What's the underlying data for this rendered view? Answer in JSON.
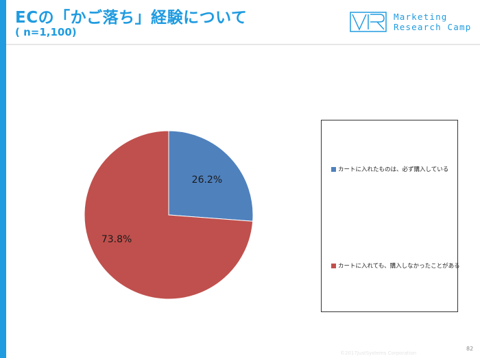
{
  "header": {
    "title": "ECの「かご落ち」経験について",
    "subtitle": "( n=1,100)"
  },
  "logo": {
    "line1": "Marketing",
    "line2": "Research Camp"
  },
  "footer": {
    "copyright": "©2017JustSystems Corporation",
    "page_number": "82"
  },
  "colors": {
    "accent": "#1f9be0",
    "series_blue": "#4f81bd",
    "series_red": "#c0504d"
  },
  "chart_data": {
    "type": "pie",
    "categories": [
      "カートに入れたものは、必ず購入している",
      "カートに入れても、購入しなかったことがある"
    ],
    "values": [
      26.2,
      73.8
    ],
    "labels": [
      "26.2%",
      "73.8%"
    ],
    "colors": [
      "#4f81bd",
      "#c0504d"
    ],
    "start": "12 o'clock",
    "direction": "clockwise",
    "legend_position": "right"
  }
}
